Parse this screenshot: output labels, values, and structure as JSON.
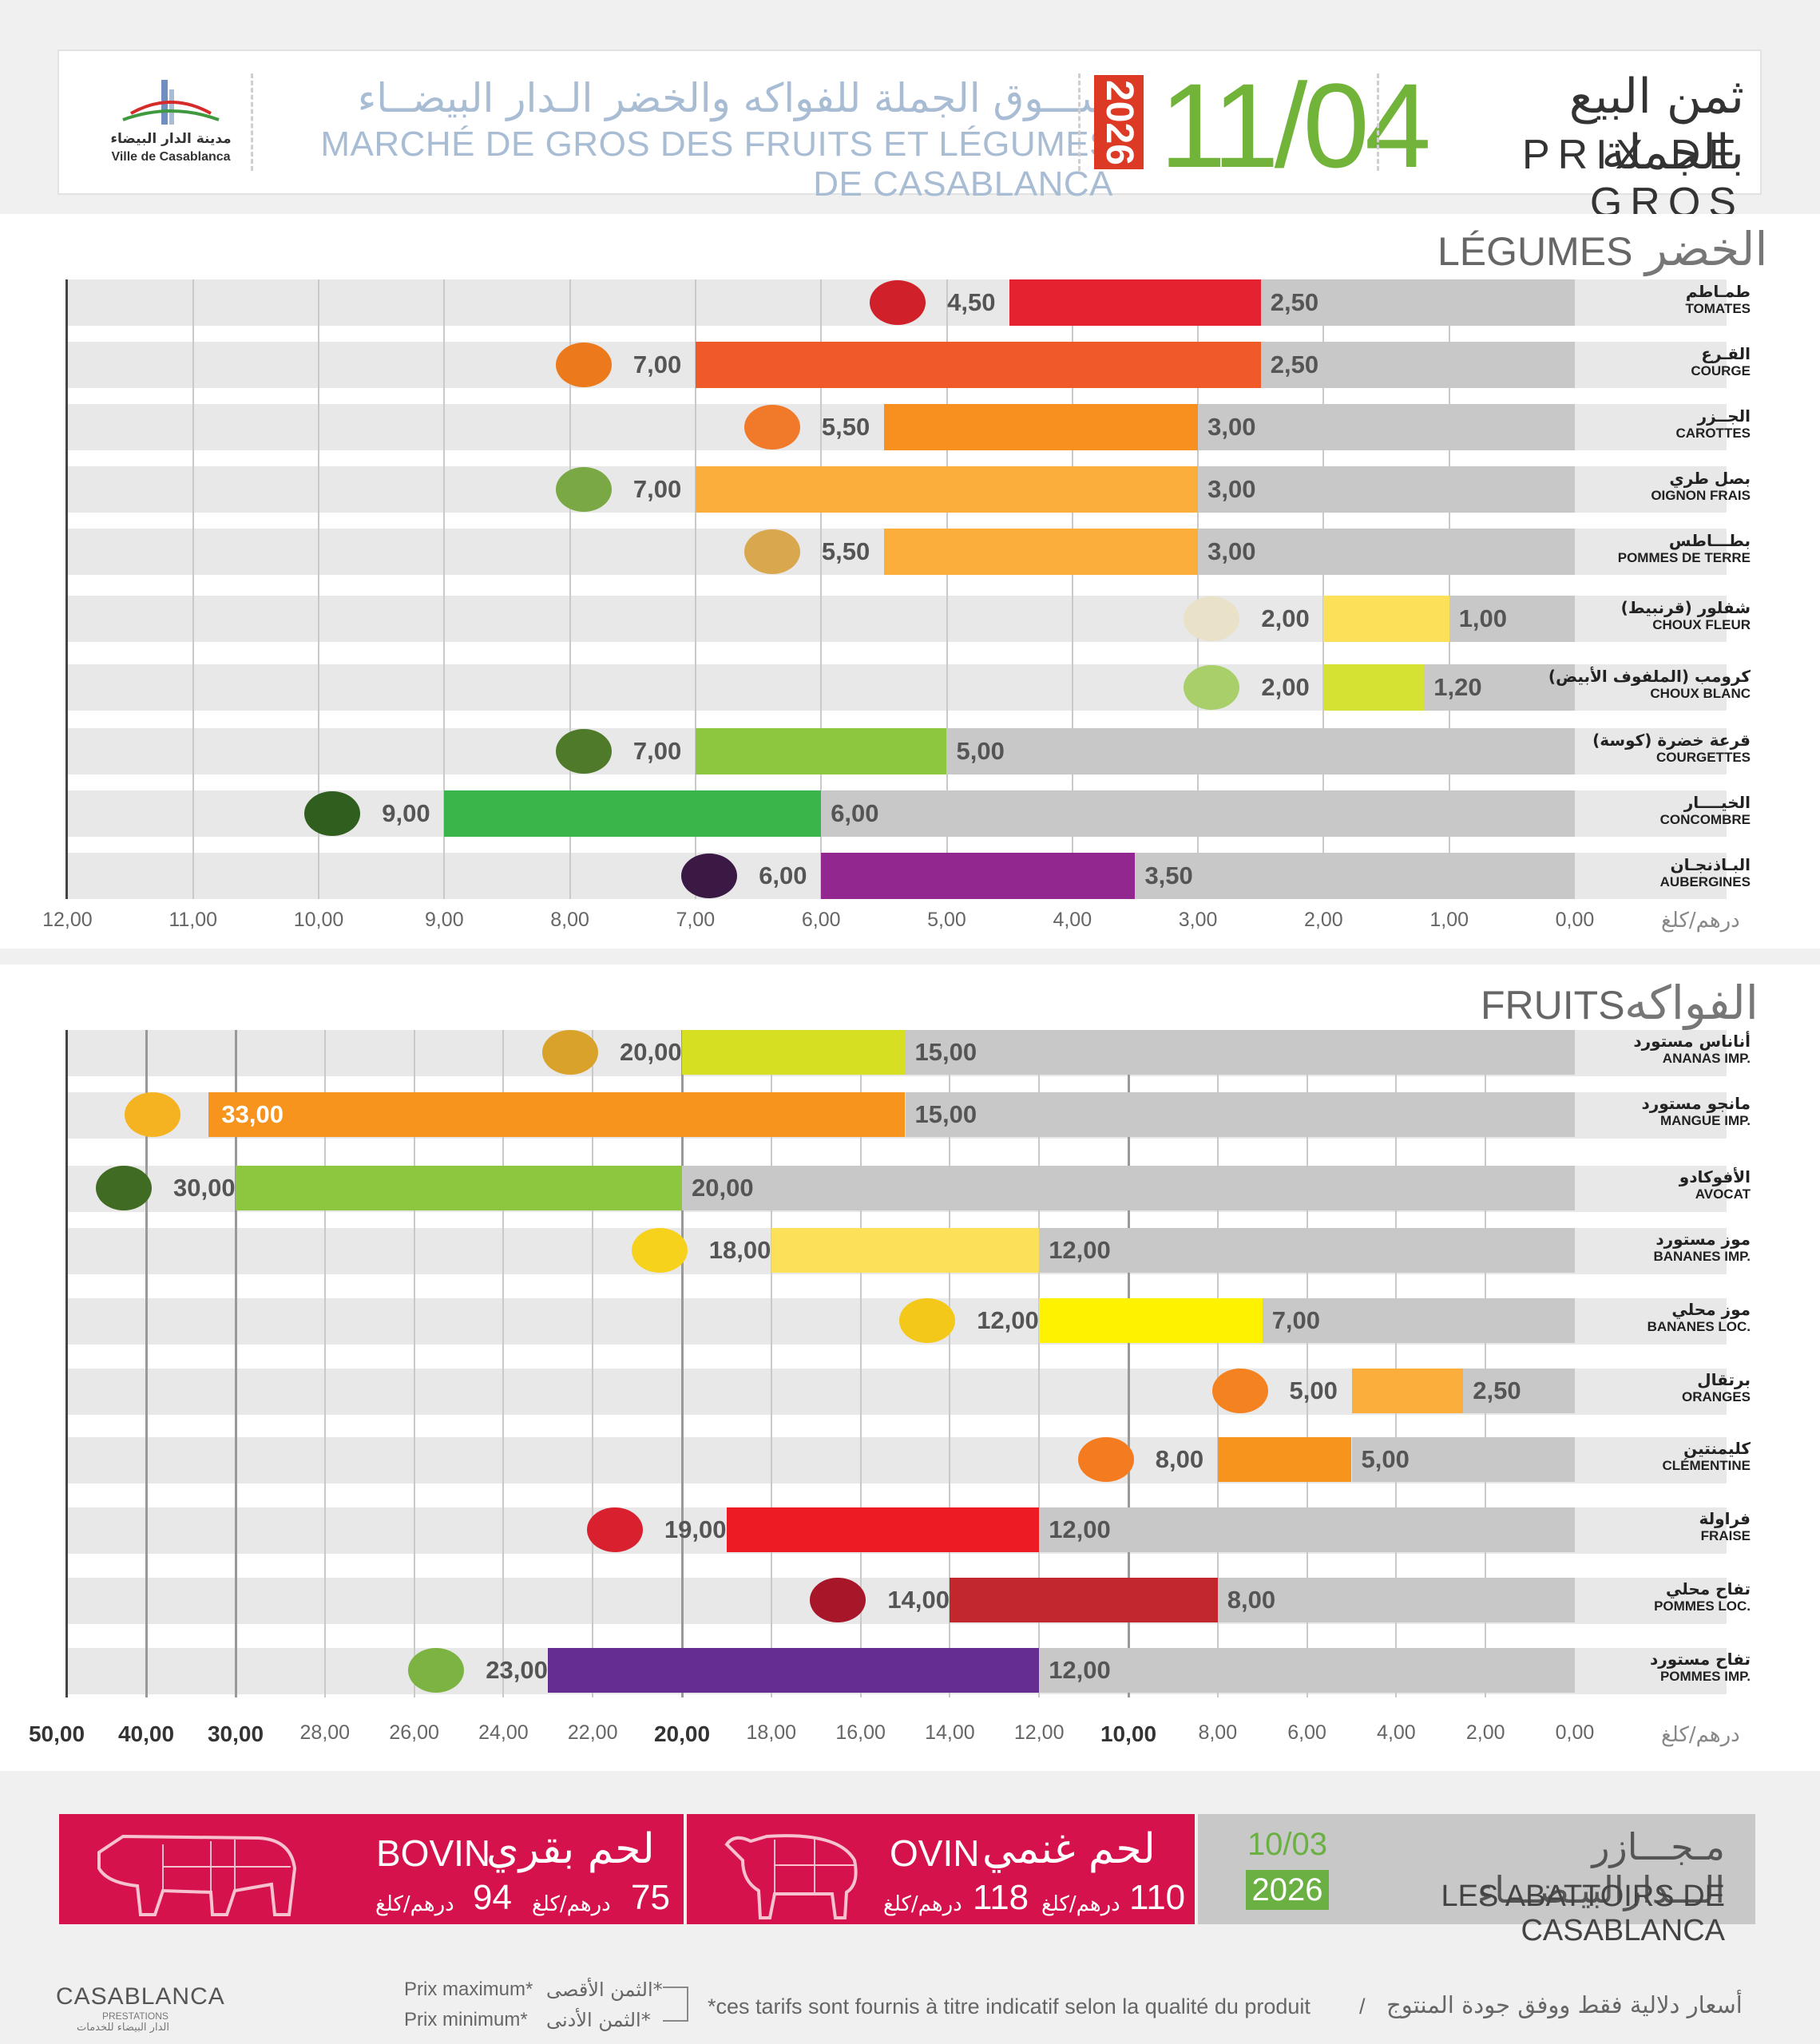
{
  "header": {
    "logo_ar": "مدينة الدار البيضاء",
    "logo_fr": "Ville de Casablanca",
    "market_ar": "ســـوق الجملة للفواكه والخضر الـدار البيضــاء",
    "market_fr": "MARCHÉ DE GROS DES FRUITS ET LÉGUMES DE CASABLANCA",
    "year": "2026",
    "date": "11/04",
    "title_ar": "ثمن البيع بالجملة",
    "title_fr": "PRIX DE GROS"
  },
  "legumes": {
    "title_fr": "LÉGUMES",
    "title_ar": "الخضر",
    "unit": "درهم/كلغ"
  },
  "fruits": {
    "title_fr": "FRUITS",
    "title_ar": "الفواكه",
    "unit": "درهم/كلغ"
  },
  "chart_data": [
    {
      "type": "bar",
      "orientation": "horizontal-range",
      "title": "LÉGUMES / الخضر",
      "xlim": [
        0,
        12
      ],
      "xaxis_reversed": true,
      "xlabel": "درهم/كلغ",
      "ticks": [
        "12,00",
        "11,00",
        "10,00",
        "9,00",
        "8,00",
        "7,00",
        "6,00",
        "5,00",
        "4,00",
        "3,00",
        "2,00",
        "1,00",
        "0,00"
      ],
      "series_meaning": [
        "Prix minimum (gris)",
        "Prix maximum (couleur)"
      ],
      "items": [
        {
          "ar": "طمـاطم",
          "fr": "TOMATES",
          "min": 2.5,
          "max": 4.5,
          "min_label": "2,50",
          "max_label": "4,50",
          "color": "#e5222f",
          "icon": "tomato-icon",
          "icon_color": "#d0202a"
        },
        {
          "ar": "القـرع",
          "fr": "COURGE",
          "min": 2.5,
          "max": 7.0,
          "min_label": "2,50",
          "max_label": "7,00",
          "color": "#f05a28",
          "icon": "pumpkin-icon",
          "icon_color": "#ec7a1c"
        },
        {
          "ar": "الجــزر",
          "fr": "CAROTTES",
          "min": 3.0,
          "max": 5.5,
          "min_label": "3,00",
          "max_label": "5,50",
          "color": "#f7901e",
          "icon": "carrot-icon",
          "icon_color": "#f07a2a"
        },
        {
          "ar": "بصل طري",
          "fr": "OIGNON FRAIS",
          "min": 3.0,
          "max": 7.0,
          "min_label": "3,00",
          "max_label": "7,00",
          "color": "#fbae3c",
          "icon": "onion-icon",
          "icon_color": "#7aa845"
        },
        {
          "ar": "بطـــاطس",
          "fr": "POMMES DE TERRE",
          "min": 3.0,
          "max": 5.5,
          "min_label": "3,00",
          "max_label": "5,50",
          "color": "#fbae3c",
          "icon": "potato-icon",
          "icon_color": "#d9a84e"
        },
        {
          "ar": "شفلور (قرنبيط)",
          "fr": "CHOUX FLEUR",
          "min": 1.0,
          "max": 2.0,
          "min_label": "1,00",
          "max_label": "2,00",
          "color": "#fce05a",
          "icon": "cauliflower-icon",
          "icon_color": "#e9e2c8"
        },
        {
          "ar": "كرومب (الملفوف الأبيض)",
          "fr": "CHOUX BLANC",
          "min": 1.2,
          "max": 2.0,
          "min_label": "1,20",
          "max_label": "2,00",
          "color": "#d5e234",
          "icon": "cabbage-icon",
          "icon_color": "#a9cf6a"
        },
        {
          "ar": "قرعة خضرة (كوسة)",
          "fr": "COURGETTES",
          "min": 5.0,
          "max": 7.0,
          "min_label": "5,00",
          "max_label": "7,00",
          "color": "#8dc63f",
          "icon": "zucchini-icon",
          "icon_color": "#4e7a2a"
        },
        {
          "ar": "الخيــــار",
          "fr": "CONCOMBRE",
          "min": 6.0,
          "max": 9.0,
          "min_label": "6,00",
          "max_label": "9,00",
          "color": "#39b54a",
          "icon": "cucumber-icon",
          "icon_color": "#2f5e1f"
        },
        {
          "ar": "البـاذنجـان",
          "fr": "AUBERGINES",
          "min": 3.5,
          "max": 6.0,
          "min_label": "3,50",
          "max_label": "6,00",
          "color": "#92278f",
          "icon": "eggplant-icon",
          "icon_color": "#3a1a44"
        }
      ]
    },
    {
      "type": "bar",
      "orientation": "horizontal-range",
      "title": "FRUITS / الفواكه",
      "xlim": [
        0,
        50
      ],
      "xaxis_reversed": true,
      "xaxis_piecewise": true,
      "xlabel": "درهم/كلغ",
      "ticks": [
        "50,00",
        "40,00",
        "30,00",
        "28,00",
        "26,00",
        "24,00",
        "22,00",
        "20,00",
        "18,00",
        "16,00",
        "14,00",
        "12,00",
        "10,00",
        "8,00",
        "6,00",
        "4,00",
        "2,00",
        "0,00"
      ],
      "series_meaning": [
        "Prix minimum (gris)",
        "Prix maximum (couleur)"
      ],
      "items": [
        {
          "ar": "أناناس مستورد",
          "fr": "ANANAS IMP.",
          "min": 15,
          "max": 20,
          "min_label": "15,00",
          "max_label": "20,00",
          "color": "#d7df23",
          "icon": "pineapple-icon",
          "icon_color": "#d9a22a"
        },
        {
          "ar": "مانجو مستورد",
          "fr": "MANGUE IMP.",
          "min": 15,
          "max": 33,
          "min_label": "15,00",
          "max_label": "33,00",
          "color": "#f7941d",
          "icon": "mango-icon",
          "icon_color": "#f5b321"
        },
        {
          "ar": "الأفوكادو",
          "fr": "AVOCAT",
          "min": 20,
          "max": 30,
          "min_label": "20,00",
          "max_label": "30,00",
          "color": "#8dc63f",
          "icon": "avocado-icon",
          "icon_color": "#3f6b22"
        },
        {
          "ar": "موز مستورد",
          "fr": "BANANES IMP.",
          "min": 12,
          "max": 18,
          "min_label": "12,00",
          "max_label": "18,00",
          "color": "#fce05a",
          "icon": "bananas-icon",
          "icon_color": "#f6d21c"
        },
        {
          "ar": "موز محلي",
          "fr": "BANANES LOC.",
          "min": 7,
          "max": 12,
          "min_label": "7,00",
          "max_label": "12,00",
          "color": "#fff200",
          "icon": "banana-icon",
          "icon_color": "#f4c818"
        },
        {
          "ar": "برتقال",
          "fr": "ORANGES",
          "min": 2.5,
          "max": 5,
          "min_label": "2,50",
          "max_label": "5,00",
          "color": "#fbae3c",
          "icon": "orange-icon",
          "icon_color": "#f58220"
        },
        {
          "ar": "كليمنتين",
          "fr": "CLÉMENTINE",
          "min": 5,
          "max": 8,
          "min_label": "5,00",
          "max_label": "8,00",
          "color": "#f7941d",
          "icon": "clementine-icon",
          "icon_color": "#f47b20"
        },
        {
          "ar": "فراولة",
          "fr": "FRAISE",
          "min": 12,
          "max": 19,
          "min_label": "12,00",
          "max_label": "19,00",
          "color": "#ed1c24",
          "icon": "strawberry-icon",
          "icon_color": "#d8202f"
        },
        {
          "ar": "تفاح محلي",
          "fr": "POMMES LOC.",
          "min": 8,
          "max": 14,
          "min_label": "8,00",
          "max_label": "14,00",
          "color": "#c1272d",
          "icon": "apple-red-icon",
          "icon_color": "#a8162a"
        },
        {
          "ar": "تفاح مستورد",
          "fr": "POMMES IMP.",
          "min": 12,
          "max": 23,
          "min_label": "12,00",
          "max_label": "23,00",
          "color": "#662d91",
          "icon": "apples-icon",
          "icon_color": "#7cb342"
        }
      ]
    }
  ],
  "abattoirs": {
    "title_ar": "مـجـــازر الـــدارالبيـضـــاء",
    "title_fr": "LES ABATTOIRS DE CASABLANCA",
    "date": "10/03",
    "year": "2026",
    "ovin": {
      "fr": "OVIN",
      "ar": "لحم غنمي",
      "price_min": "110",
      "price_max": "118",
      "unit": "درهم/كلغ"
    },
    "bovin": {
      "fr": "BOVIN",
      "ar": "لحم بقري",
      "price_min": "75",
      "price_max": "94",
      "unit": "درهم/كلغ"
    },
    "colors": {
      "meat": "#d6124d",
      "gray": "#c8c8c8",
      "green": "#6ab043"
    }
  },
  "footer": {
    "brand": "CASABLANCA",
    "brand_sub": "PRESTATIONS",
    "brand_ar": "الدار البيضاء للخدمات",
    "prix_max_fr": "Prix maximum*",
    "prix_min_fr": "Prix minimum*",
    "prix_max_ar": "*الثمن الأقصى",
    "prix_min_ar": "*الثمن الأدنى",
    "disclaimer_fr": "*ces tarifs sont fournis à titre indicatif selon la qualité du produit",
    "disclaimer_ar": "أسعار دلالية فقط ووفق جودة المنتوج",
    "separator": "/"
  }
}
